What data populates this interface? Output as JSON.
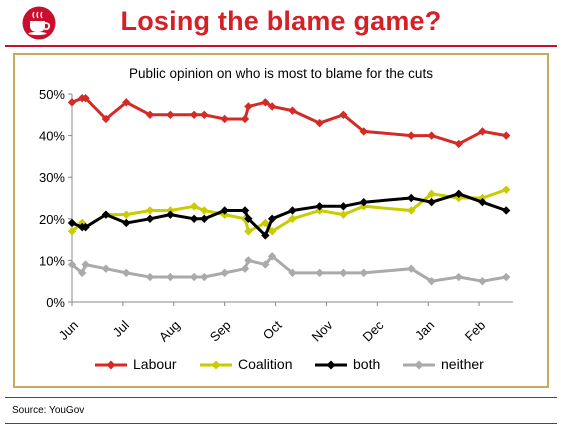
{
  "header": {
    "title": "Losing the blame game?",
    "logo_icon": "tea-cup-logo-icon"
  },
  "footer": {
    "source": "Source: YouGov"
  },
  "colors": {
    "brand": "#d42027",
    "frame": "#c9a95c",
    "labour": "#d42b27",
    "coalition": "#c8cc00",
    "both": "#000000",
    "neither": "#aaaaaa"
  },
  "chart_data": {
    "type": "line",
    "title": "Public opinion on who is most to blame for the cuts",
    "xlabel": "",
    "ylabel": "",
    "x_ticks": [
      "Jun",
      "Jul",
      "Aug",
      "Sep",
      "Oct",
      "Nov",
      "Dec",
      "Jan",
      "Feb"
    ],
    "y_ticks": [
      "0%",
      "10%",
      "20%",
      "30%",
      "40%",
      "50%"
    ],
    "ylim": [
      0,
      50
    ],
    "grid": false,
    "legend": "bottom",
    "series": [
      {
        "name": "Labour",
        "color": "#d42b27",
        "points": [
          [
            0.0,
            48
          ],
          [
            0.3,
            49
          ],
          [
            0.4,
            49
          ],
          [
            1.0,
            44
          ],
          [
            1.6,
            48
          ],
          [
            2.3,
            45
          ],
          [
            2.9,
            45
          ],
          [
            3.6,
            45
          ],
          [
            3.9,
            45
          ],
          [
            4.5,
            44
          ],
          [
            5.1,
            44
          ],
          [
            5.2,
            47
          ],
          [
            5.7,
            48
          ],
          [
            5.9,
            47
          ],
          [
            6.5,
            46
          ],
          [
            7.3,
            43
          ],
          [
            8.0,
            45
          ],
          [
            8.6,
            41
          ],
          [
            10.0,
            40
          ],
          [
            10.6,
            40
          ],
          [
            11.4,
            38
          ],
          [
            12.1,
            41
          ],
          [
            12.8,
            40
          ]
        ]
      },
      {
        "name": "Coalition",
        "color": "#c8cc00",
        "points": [
          [
            0.0,
            17
          ],
          [
            0.3,
            19
          ],
          [
            0.4,
            18
          ],
          [
            1.0,
            21
          ],
          [
            1.6,
            21
          ],
          [
            2.3,
            22
          ],
          [
            2.9,
            22
          ],
          [
            3.6,
            23
          ],
          [
            3.9,
            22
          ],
          [
            4.5,
            21
          ],
          [
            5.1,
            20
          ],
          [
            5.2,
            17
          ],
          [
            5.7,
            19
          ],
          [
            5.9,
            17
          ],
          [
            6.5,
            20
          ],
          [
            7.3,
            22
          ],
          [
            8.0,
            21
          ],
          [
            8.6,
            23
          ],
          [
            10.0,
            22
          ],
          [
            10.6,
            26
          ],
          [
            11.4,
            25
          ],
          [
            12.1,
            25
          ],
          [
            12.8,
            27
          ]
        ]
      },
      {
        "name": "both",
        "color": "#000000",
        "points": [
          [
            0.0,
            19
          ],
          [
            0.3,
            18
          ],
          [
            0.4,
            18
          ],
          [
            1.0,
            21
          ],
          [
            1.6,
            19
          ],
          [
            2.3,
            20
          ],
          [
            2.9,
            21
          ],
          [
            3.6,
            20
          ],
          [
            3.9,
            20
          ],
          [
            4.5,
            22
          ],
          [
            5.1,
            22
          ],
          [
            5.2,
            20
          ],
          [
            5.7,
            16
          ],
          [
            5.9,
            20
          ],
          [
            6.5,
            22
          ],
          [
            7.3,
            23
          ],
          [
            8.0,
            23
          ],
          [
            8.6,
            24
          ],
          [
            10.0,
            25
          ],
          [
            10.6,
            24
          ],
          [
            11.4,
            26
          ],
          [
            12.1,
            24
          ],
          [
            12.8,
            22
          ]
        ]
      },
      {
        "name": "neither",
        "color": "#aaaaaa",
        "points": [
          [
            0.0,
            9
          ],
          [
            0.3,
            7
          ],
          [
            0.4,
            9
          ],
          [
            1.0,
            8
          ],
          [
            1.6,
            7
          ],
          [
            2.3,
            6
          ],
          [
            2.9,
            6
          ],
          [
            3.6,
            6
          ],
          [
            3.9,
            6
          ],
          [
            4.5,
            7
          ],
          [
            5.1,
            8
          ],
          [
            5.2,
            10
          ],
          [
            5.7,
            9
          ],
          [
            5.9,
            11
          ],
          [
            6.5,
            7
          ],
          [
            7.3,
            7
          ],
          [
            8.0,
            7
          ],
          [
            8.6,
            7
          ],
          [
            10.0,
            8
          ],
          [
            10.6,
            5
          ],
          [
            11.4,
            6
          ],
          [
            12.1,
            5
          ],
          [
            12.8,
            6
          ]
        ]
      }
    ]
  }
}
